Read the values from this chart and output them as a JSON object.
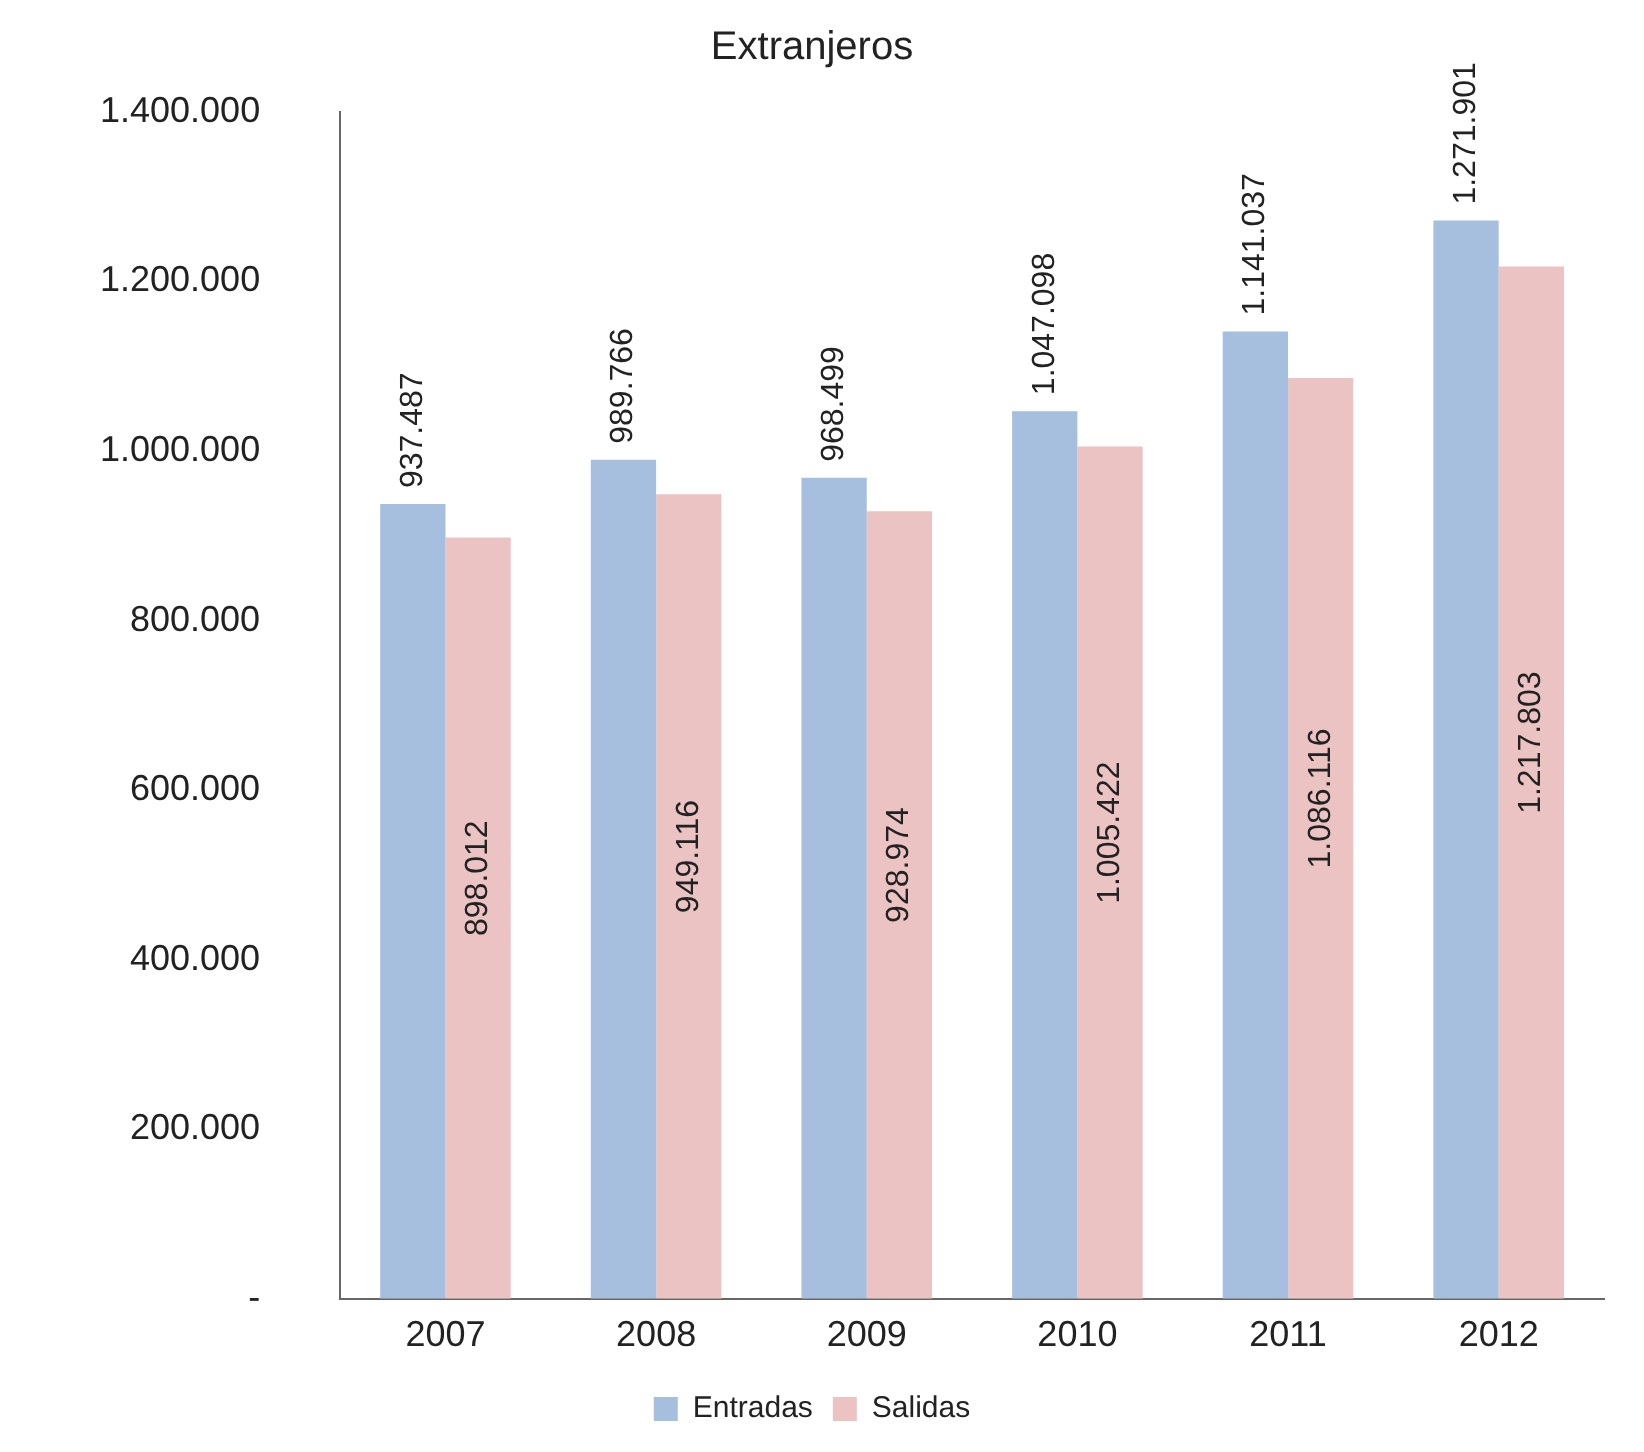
{
  "chart_data": {
    "type": "bar",
    "title": "Extranjeros",
    "categories": [
      "2007",
      "2008",
      "2009",
      "2010",
      "2011",
      "2012"
    ],
    "series": [
      {
        "name": "Entradas",
        "color": "#a7bfdf",
        "values": [
          937487,
          989766,
          968499,
          1047098,
          1141037,
          1271901
        ],
        "value_labels": [
          "937.487",
          "989.766",
          "968.499",
          "1.047.098",
          "1.141.037",
          "1.271.901"
        ]
      },
      {
        "name": "Salidas",
        "color": "#ecc3c3",
        "values": [
          898012,
          949116,
          928974,
          1005422,
          1086116,
          1217803
        ],
        "value_labels": [
          "898.012",
          "949.116",
          "928.974",
          "1.005.422",
          "1.086.116",
          "1.217.803"
        ]
      }
    ],
    "ylim": [
      0,
      1400000
    ],
    "yticks": [
      {
        "value": 0,
        "label": "-"
      },
      {
        "value": 200000,
        "label": "200.000"
      },
      {
        "value": 400000,
        "label": "400.000"
      },
      {
        "value": 600000,
        "label": "600.000"
      },
      {
        "value": 800000,
        "label": "800.000"
      },
      {
        "value": 1000000,
        "label": "1.000.000"
      },
      {
        "value": 1200000,
        "label": "1.200.000"
      },
      {
        "value": 1400000,
        "label": "1.400.000"
      }
    ],
    "grid": false,
    "legend": "bottom"
  }
}
